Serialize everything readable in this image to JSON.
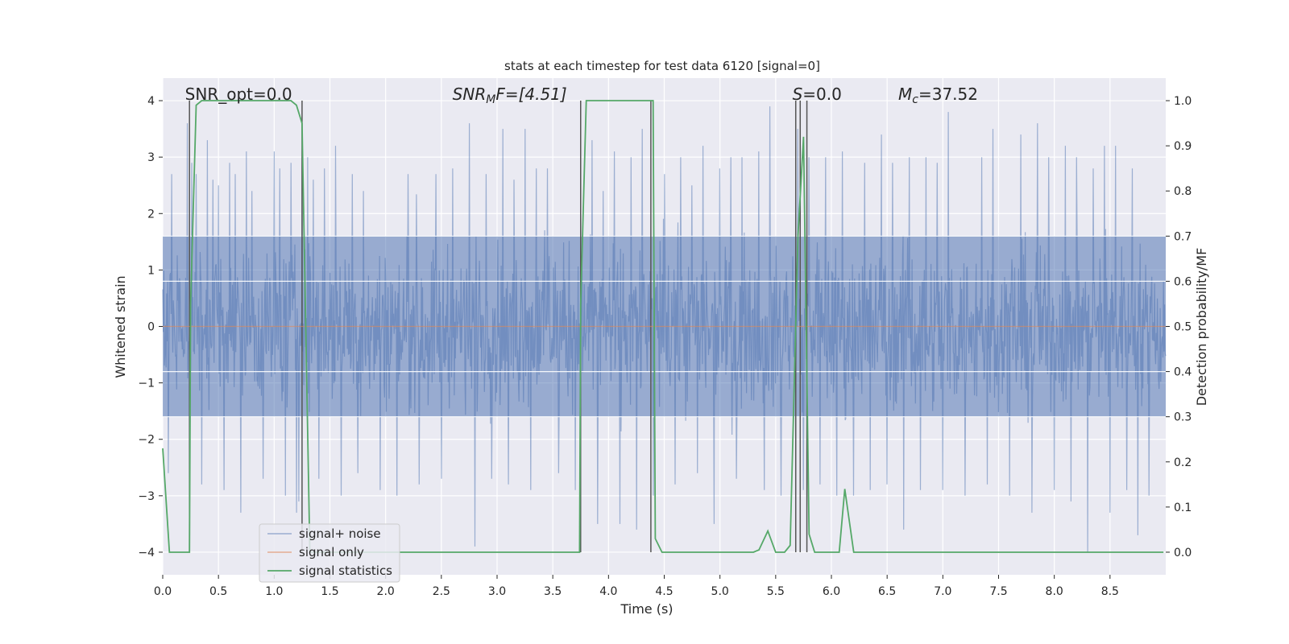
{
  "chart_data": {
    "type": "line",
    "title": "stats at each timestep for test data 6120 [signal=0]",
    "xlabel": "Time (s)",
    "ylabel_left": "Whitened strain",
    "ylabel_right": "Detection probability/MF",
    "xlim": [
      0,
      9.0
    ],
    "ylim_left": [
      -4.4,
      4.4
    ],
    "ylim_right": [
      -0.05,
      1.05
    ],
    "x_ticks": [
      "0.0",
      "0.5",
      "1.0",
      "1.5",
      "2.0",
      "2.5",
      "3.0",
      "3.5",
      "4.0",
      "4.5",
      "5.0",
      "5.5",
      "6.0",
      "6.5",
      "7.0",
      "7.5",
      "8.0",
      "8.5"
    ],
    "x_tick_values": [
      0,
      0.5,
      1,
      1.5,
      2,
      2.5,
      3,
      3.5,
      4,
      4.5,
      5,
      5.5,
      6,
      6.5,
      7,
      7.5,
      8,
      8.5
    ],
    "y_ticks_left": [
      "4",
      "3",
      "2",
      "1",
      "0",
      "−1",
      "−2",
      "−3",
      "−4"
    ],
    "y_tick_values_left": [
      4,
      3,
      2,
      1,
      0,
      -1,
      -2,
      -3,
      -4
    ],
    "y_ticks_right": [
      "1.0",
      "0.9",
      "0.8",
      "0.7",
      "0.6",
      "0.5",
      "0.4",
      "0.3",
      "0.2",
      "0.1",
      "0.0"
    ],
    "y_tick_values_right": [
      1.0,
      0.9,
      0.8,
      0.7,
      0.6,
      0.5,
      0.4,
      0.3,
      0.2,
      0.1,
      0.0
    ],
    "grid": true,
    "legend_position": "lower-left",
    "annotations": {
      "snr_opt": "SNR_opt=0.0",
      "snr_mf_var": "SNR",
      "snr_mf_sub": "M",
      "snr_mf_rest": "F=[4.51]",
      "s_var": "S",
      "s_rest": "=0.0",
      "mc_var": "M",
      "mc_sub": "c",
      "mc_rest": "=37.52"
    },
    "annotation_x": [
      0.2,
      2.6,
      5.65,
      6.6
    ],
    "series": [
      {
        "name": "signal+ noise",
        "color": "#4c72b0",
        "opacity": 0.5,
        "description": "noise-like whitened strain, 0 to 9 s, approx ±1.6 typical with spikes to ±4",
        "peak_x": [
          0.08,
          0.22,
          0.26,
          0.3,
          0.4,
          0.45,
          0.5,
          0.6,
          0.65,
          0.75,
          0.8,
          0.9,
          1.0,
          1.05,
          1.15,
          1.25,
          1.3,
          1.35,
          1.45,
          1.55,
          1.7,
          1.8,
          1.95,
          2.1,
          2.2,
          2.3,
          2.45,
          2.5,
          2.6,
          2.75,
          2.9,
          2.95,
          3.05,
          3.15,
          3.25,
          3.35,
          3.45,
          3.55,
          3.7,
          3.85,
          3.95,
          4.05,
          4.2,
          4.3,
          4.5,
          4.65,
          4.75,
          4.85,
          5.0,
          5.1,
          5.2,
          5.35,
          5.45,
          5.55,
          5.7,
          5.8,
          5.95,
          6.1,
          6.2,
          6.3,
          6.45,
          6.55,
          6.7,
          6.85,
          6.95,
          7.05,
          7.2,
          7.35,
          7.45,
          7.6,
          7.7,
          7.85,
          7.95,
          8.1,
          8.2,
          8.35,
          8.45,
          8.55,
          8.7,
          8.85
        ],
        "peak_y": [
          2.7,
          3.6,
          2.9,
          2.7,
          3.3,
          2.6,
          2.5,
          2.9,
          2.7,
          3.1,
          2.4,
          2.7,
          3.1,
          2.8,
          2.9,
          3.0,
          3.0,
          2.6,
          2.8,
          3.2,
          2.7,
          2.4,
          3.0,
          2.6,
          2.7,
          2.9,
          2.7,
          2.4,
          2.8,
          3.6,
          2.7,
          3.0,
          3.5,
          2.6,
          3.5,
          2.8,
          2.8,
          3.2,
          2.9,
          3.3,
          2.4,
          3.1,
          3.0,
          3.5,
          2.7,
          3.0,
          2.5,
          3.2,
          2.8,
          3.0,
          3.0,
          3.1,
          3.9,
          3.8,
          3.5,
          3.0,
          3.0,
          3.1,
          2.8,
          2.9,
          3.4,
          2.9,
          3.0,
          3.0,
          2.9,
          3.8,
          3.5,
          3.0,
          3.5,
          3.8,
          3.4,
          3.6,
          3.0,
          3.2,
          3.0,
          2.8,
          3.2,
          3.2,
          2.8,
          3.0
        ],
        "trough_x": [
          0.05,
          0.35,
          0.55,
          0.7,
          0.9,
          1.1,
          1.2,
          1.22,
          1.4,
          1.6,
          1.75,
          1.95,
          2.1,
          2.3,
          2.5,
          2.8,
          2.95,
          3.1,
          3.3,
          3.55,
          3.7,
          3.9,
          4.1,
          4.25,
          4.4,
          4.6,
          4.8,
          4.95,
          5.15,
          5.4,
          5.55,
          5.75,
          5.9,
          6.05,
          6.2,
          6.35,
          6.5,
          6.65,
          6.8,
          7.0,
          7.2,
          7.4,
          7.6,
          7.8,
          8.0,
          8.15,
          8.3,
          8.5,
          8.65,
          8.75,
          8.85
        ],
        "trough_y": [
          -2.6,
          -2.8,
          -2.9,
          -3.3,
          -2.7,
          -3.0,
          -3.3,
          -3.1,
          -2.7,
          -3.0,
          -2.6,
          -2.9,
          -3.0,
          -2.8,
          -2.7,
          -3.9,
          -2.7,
          -2.8,
          -2.9,
          -2.6,
          -2.9,
          -3.5,
          -3.5,
          -3.6,
          -3.0,
          -2.8,
          -2.6,
          -3.5,
          -2.7,
          -2.9,
          -3.0,
          -2.9,
          -2.8,
          -3.0,
          -3.0,
          -2.9,
          -2.8,
          -3.6,
          -2.9,
          -2.9,
          -3.0,
          -2.8,
          -3.0,
          -3.3,
          -2.9,
          -3.1,
          -4.0,
          -3.3,
          -2.9,
          -3.7,
          -3.0
        ]
      },
      {
        "name": "signal only",
        "color": "#dd8452",
        "x": [
          0,
          9.0
        ],
        "y": [
          0,
          0
        ]
      },
      {
        "name": "signal statistics",
        "color": "#55a868",
        "axis": "right",
        "x": [
          0.0,
          0.06,
          0.24,
          0.25,
          0.3,
          0.35,
          1.15,
          1.2,
          1.25,
          1.32,
          1.4,
          3.6,
          3.74,
          3.75,
          3.8,
          3.85,
          4.3,
          4.4,
          4.42,
          4.48,
          4.55,
          5.3,
          5.35,
          5.43,
          5.5,
          5.58,
          5.63,
          5.7,
          5.75,
          5.8,
          5.85,
          5.95,
          6.07,
          6.12,
          6.2,
          8.98
        ],
        "y": [
          0.23,
          0.0,
          0.0,
          0.55,
          0.99,
          1.0,
          1.0,
          0.99,
          0.95,
          0.0,
          0.0,
          0.0,
          0.0,
          0.55,
          1.0,
          1.0,
          1.0,
          1.0,
          0.03,
          0.0,
          0.0,
          0.0,
          0.005,
          0.047,
          0.0,
          0.0,
          0.015,
          0.7,
          0.92,
          0.04,
          0.0,
          0.0,
          0.0,
          0.14,
          0.0,
          0.0
        ]
      }
    ],
    "vertical_lines_x": [
      0.24,
      1.25,
      3.75,
      4.38,
      5.68,
      5.72,
      5.78
    ],
    "legend": [
      "signal+ noise",
      "signal only",
      "signal statistics"
    ]
  }
}
